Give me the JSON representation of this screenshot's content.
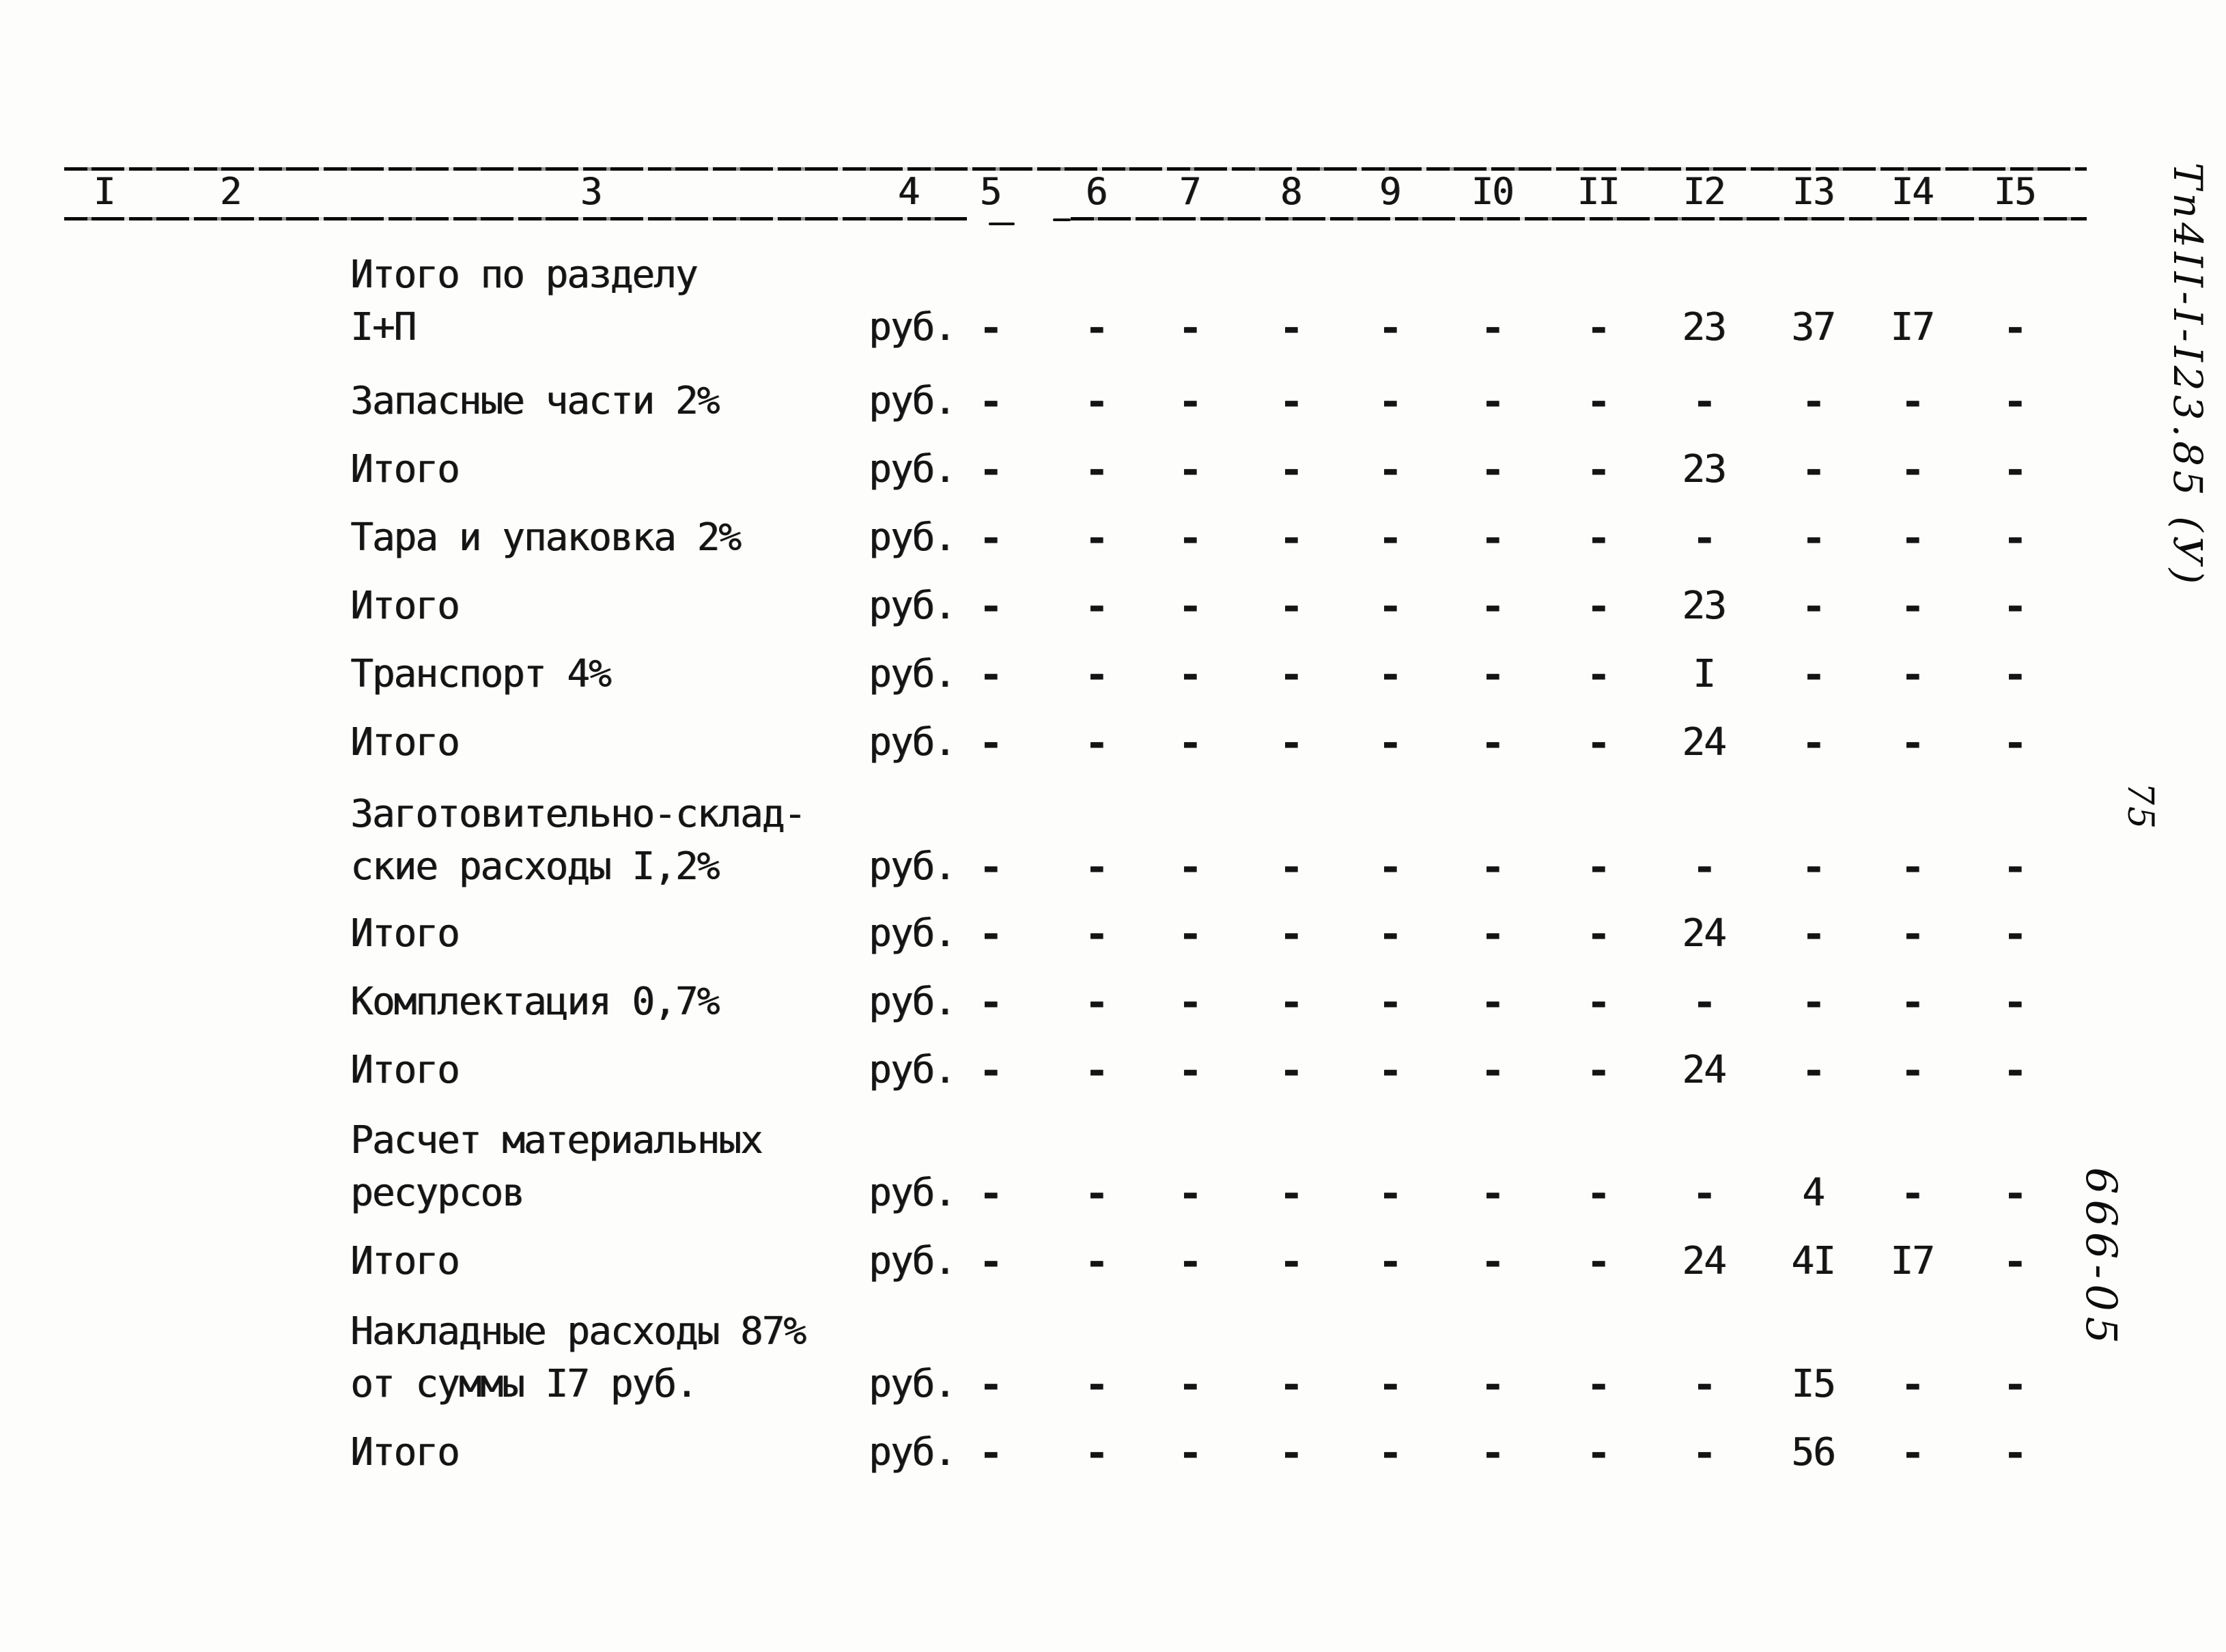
{
  "document": {
    "code_vertical": "Тп4II-I-I23.85 (У)",
    "page_number": "75",
    "inventory_number": "666-05"
  },
  "table": {
    "column_headers": [
      "I",
      "2",
      "3",
      "4",
      "5",
      "6",
      "7",
      "8",
      "9",
      "I0",
      "II",
      "I2",
      "I3",
      "I4",
      "I5"
    ],
    "rows": [
      {
        "lines": [
          "Итого по разделу",
          "I+П"
        ],
        "unit": "руб.",
        "cells": {
          "5": "-",
          "6": "-",
          "7": "-",
          "8": "-",
          "9": "-",
          "10": "-",
          "11": "-",
          "12": "23",
          "13": "37",
          "14": "I7",
          "15": "-"
        }
      },
      {
        "lines": [
          "Запасные части 2%"
        ],
        "unit": "руб.",
        "cells": {
          "5": "-",
          "6": "-",
          "7": "-",
          "8": "-",
          "9": "-",
          "10": "-",
          "11": "-",
          "12": "-",
          "13": "-",
          "14": "-",
          "15": "-"
        }
      },
      {
        "lines": [
          "Итого"
        ],
        "unit": "руб.",
        "cells": {
          "5": "-",
          "6": "-",
          "7": "-",
          "8": "-",
          "9": "-",
          "10": "-",
          "11": "-",
          "12": "23",
          "13": "-",
          "14": "-",
          "15": "-"
        }
      },
      {
        "lines": [
          "Тара и упаковка 2%"
        ],
        "unit": "руб.",
        "cells": {
          "5": "-",
          "6": "-",
          "7": "-",
          "8": "-",
          "9": "-",
          "10": "-",
          "11": "-",
          "12": "-",
          "13": "-",
          "14": "-",
          "15": "-"
        }
      },
      {
        "lines": [
          "Итого"
        ],
        "unit": "руб.",
        "cells": {
          "5": "-",
          "6": "-",
          "7": "-",
          "8": "-",
          "9": "-",
          "10": "-",
          "11": "-",
          "12": "23",
          "13": "-",
          "14": "-",
          "15": "-"
        }
      },
      {
        "lines": [
          "Транспорт 4%"
        ],
        "unit": "руб.",
        "cells": {
          "5": "-",
          "6": "-",
          "7": "-",
          "8": "-",
          "9": "-",
          "10": "-",
          "11": "-",
          "12": "I",
          "13": "-",
          "14": "-",
          "15": "-"
        }
      },
      {
        "lines": [
          "Итого"
        ],
        "unit": "руб.",
        "cells": {
          "5": "-",
          "6": "-",
          "7": "-",
          "8": "-",
          "9": "-",
          "10": "-",
          "11": "-",
          "12": "24",
          "13": "-",
          "14": "-",
          "15": "-"
        }
      },
      {
        "lines": [
          "Заготовительно-склад-",
          "ские расходы I,2%"
        ],
        "unit": "руб.",
        "cells": {
          "5": "-",
          "6": "-",
          "7": "-",
          "8": "-",
          "9": "-",
          "10": "-",
          "11": "-",
          "12": "-",
          "13": "-",
          "14": "-",
          "15": "-"
        }
      },
      {
        "lines": [
          "Итого"
        ],
        "unit": "руб.",
        "cells": {
          "5": "-",
          "6": "-",
          "7": "-",
          "8": "-",
          "9": "-",
          "10": "-",
          "11": "-",
          "12": "24",
          "13": "-",
          "14": "-",
          "15": "-"
        }
      },
      {
        "lines": [
          "Комплектация 0,7%"
        ],
        "unit": "руб.",
        "cells": {
          "5": "-",
          "6": "-",
          "7": "-",
          "8": "-",
          "9": "-",
          "10": "-",
          "11": "-",
          "12": "-",
          "13": "-",
          "14": "-",
          "15": "-"
        }
      },
      {
        "lines": [
          "Итого"
        ],
        "unit": "руб.",
        "cells": {
          "5": "-",
          "6": "-",
          "7": "-",
          "8": "-",
          "9": "-",
          "10": "-",
          "11": "-",
          "12": "24",
          "13": "-",
          "14": "-",
          "15": "-"
        }
      },
      {
        "lines": [
          "Расчет материальных",
          "ресурсов"
        ],
        "unit": "руб.",
        "cells": {
          "5": "-",
          "6": "-",
          "7": "-",
          "8": "-",
          "9": "-",
          "10": "-",
          "11": "-",
          "12": "-",
          "13": "4",
          "14": "-",
          "15": "-"
        }
      },
      {
        "lines": [
          "Итого"
        ],
        "unit": "руб.",
        "cells": {
          "5": "-",
          "6": "-",
          "7": "-",
          "8": "-",
          "9": "-",
          "10": "-",
          "11": "-",
          "12": "24",
          "13": "4I",
          "14": "I7",
          "15": "-"
        }
      },
      {
        "lines": [
          "Накладные расходы 87%",
          "от суммы I7 руб."
        ],
        "unit": "руб.",
        "cells": {
          "5": "-",
          "6": "-",
          "7": "-",
          "8": "-",
          "9": "-",
          "10": "-",
          "11": "-",
          "12": "-",
          "13": "I5",
          "14": "-",
          "15": "-"
        }
      },
      {
        "lines": [
          "Итого"
        ],
        "unit": "руб.",
        "cells": {
          "5": "-",
          "6": "-",
          "7": "-",
          "8": "-",
          "9": "-",
          "10": "-",
          "11": "-",
          "12": "-",
          "13": "56",
          "14": "-",
          "15": "-"
        }
      }
    ]
  }
}
